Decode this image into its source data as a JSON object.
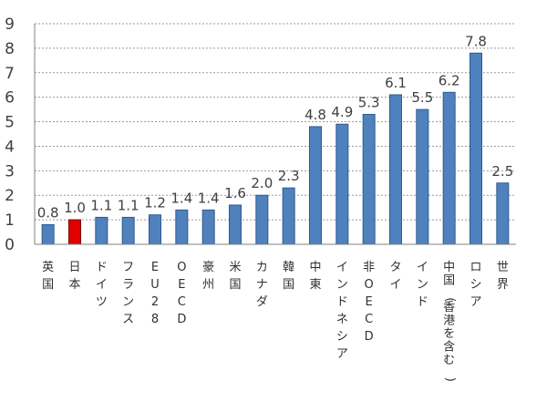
{
  "chart_data": {
    "type": "bar",
    "title": "",
    "xlabel": "",
    "ylabel": "",
    "ylim": [
      0,
      9
    ],
    "yticks": [
      0,
      1,
      2,
      3,
      4,
      5,
      6,
      7,
      8,
      9
    ],
    "grid": true,
    "legend": "none",
    "categories": [
      "英国",
      "日本",
      "ドイツ",
      "フランス",
      "EU28",
      "OECD",
      "豪州",
      "米国",
      "カナダ",
      "韓国",
      "中東",
      "インドネシア",
      "非OECD",
      "タイ",
      "インド",
      "中国(香港を含む)",
      "ロシア",
      "世界"
    ],
    "values": [
      0.8,
      1.0,
      1.1,
      1.1,
      1.2,
      1.4,
      1.4,
      1.6,
      2.0,
      2.3,
      4.8,
      4.9,
      5.3,
      6.1,
      5.5,
      6.2,
      7.8,
      2.5
    ],
    "data_labels": [
      "0.8",
      "1.0",
      "1.1",
      "1.1",
      "1.2",
      "1.4",
      "1.4",
      "1.6",
      "2.0",
      "2.3",
      "4.8",
      "4.9",
      "5.3",
      "6.1",
      "5.5",
      "6.2",
      "7.8",
      "2.5"
    ],
    "colors": {
      "default": "#4f81bd",
      "default_stroke": "#2e5a8f",
      "highlight": "#e00000",
      "highlight_stroke": "#7a0000"
    },
    "highlight_index": 1
  }
}
